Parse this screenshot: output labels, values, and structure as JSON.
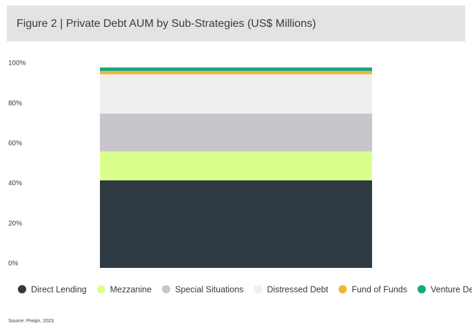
{
  "chart_data": {
    "type": "stacked-bar",
    "title": "Figure 2 | Private Debt AUM by Sub-Strategies (US$ Millions)",
    "source": "Source: Preqin, 2023.",
    "categories": [
      null
    ],
    "series": [
      {
        "name": "Direct Lending",
        "color": "#2f3a42",
        "values": [
          43.7
        ]
      },
      {
        "name": "Mezzanine",
        "color": "#d9ff8c",
        "values": [
          14.4
        ]
      },
      {
        "name": "Special Situations",
        "color": "#c8c6cc",
        "values": [
          18.9
        ]
      },
      {
        "name": "Distressed Debt",
        "color": "#efefef",
        "values": [
          19.6
        ]
      },
      {
        "name": "Fund of Funds",
        "color": "#f5b335",
        "values": [
          1.7
        ]
      },
      {
        "name": "Venture Debt",
        "color": "#13a982",
        "values": [
          1.7
        ]
      }
    ],
    "ylim": [
      0,
      100
    ],
    "yticks": [
      {
        "value": 0,
        "label": "0%"
      },
      {
        "value": 20,
        "label": "20%"
      },
      {
        "value": 40,
        "label": "40%"
      },
      {
        "value": 60,
        "label": "60%"
      },
      {
        "value": 80,
        "label": "80%"
      },
      {
        "value": 100,
        "label": "100%"
      }
    ],
    "grid": false,
    "legend": "bottom"
  }
}
